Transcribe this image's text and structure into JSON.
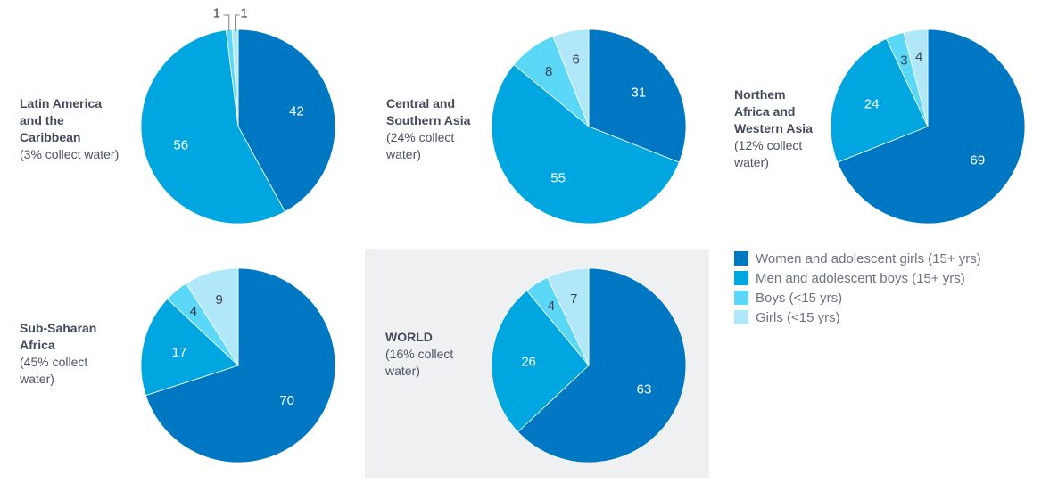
{
  "chart_data": [
    {
      "type": "pie",
      "id": "latin-america",
      "title": "Latin America and the Caribbean",
      "title_lines": [
        "Latin America",
        "and the",
        "Caribbean"
      ],
      "subtitle_lines": [
        "(3% collect water)"
      ],
      "categories": [
        "Women and adolescent girls (15+ yrs)",
        "Men and adolescent boys (15+ yrs)",
        "Boys (<15 yrs)",
        "Girls (<15 yrs)"
      ],
      "values": [
        42,
        56,
        1,
        1
      ],
      "outside_labels": true,
      "highlighted": false
    },
    {
      "type": "pie",
      "id": "central-southern-asia",
      "title": "Central and Southern Asia",
      "title_lines": [
        "Central and",
        "Southern Asia"
      ],
      "subtitle_lines": [
        "(24% collect",
        "water)"
      ],
      "categories": [
        "Women and adolescent girls (15+ yrs)",
        "Men and adolescent boys (15+ yrs)",
        "Boys (<15 yrs)",
        "Girls (<15 yrs)"
      ],
      "values": [
        31,
        55,
        8,
        6
      ],
      "outside_labels": false,
      "highlighted": false
    },
    {
      "type": "pie",
      "id": "northern-africa-western-asia",
      "title": "Northem Africa and Western Asia",
      "title_lines": [
        "Northem",
        "Africa and",
        "Western Asia"
      ],
      "subtitle_lines": [
        "(12% collect",
        "water)"
      ],
      "categories": [
        "Women and adolescent girls (15+ yrs)",
        "Men and adolescent boys (15+ yrs)",
        "Boys (<15 yrs)",
        "Girls (<15 yrs)"
      ],
      "values": [
        69,
        24,
        3,
        4
      ],
      "outside_labels": false,
      "highlighted": false
    },
    {
      "type": "pie",
      "id": "sub-saharan-africa",
      "title": "Sub-Saharan Africa",
      "title_lines": [
        "Sub-Saharan",
        "Africa"
      ],
      "subtitle_lines": [
        "(45% collect",
        "water)"
      ],
      "categories": [
        "Women and adolescent girls (15+ yrs)",
        "Men and adolescent boys (15+ yrs)",
        "Boys (<15 yrs)",
        "Girls (<15 yrs)"
      ],
      "values": [
        70,
        17,
        4,
        9
      ],
      "outside_labels": false,
      "highlighted": false
    },
    {
      "type": "pie",
      "id": "world",
      "title": "WORLD",
      "title_lines": [
        "WORLD"
      ],
      "subtitle_lines": [
        "(16% collect",
        "water)"
      ],
      "categories": [
        "Women and adolescent girls (15+ yrs)",
        "Men and adolescent boys (15+ yrs)",
        "Boys (<15 yrs)",
        "Girls (<15 yrs)"
      ],
      "values": [
        63,
        26,
        4,
        7
      ],
      "outside_labels": false,
      "highlighted": true
    }
  ],
  "legend": {
    "placement": "right",
    "items": [
      {
        "label": "Women and adolescent girls (15+ yrs)",
        "color": "#0077c2"
      },
      {
        "label": "Men and adolescent boys (15+ yrs)",
        "color": "#00a6e0"
      },
      {
        "label": "Boys (<15 yrs)",
        "color": "#5bd7f7"
      },
      {
        "label": "Girls (<15 yrs)",
        "color": "#b0e8fa"
      }
    ]
  },
  "colors": {
    "women": "#0077c2",
    "men": "#00a6e0",
    "boys": "#5bd7f7",
    "girls": "#b0e8fa",
    "label_light": "#ffffff",
    "label_dark": "#3d4250",
    "world_background": "#eff0f2"
  }
}
